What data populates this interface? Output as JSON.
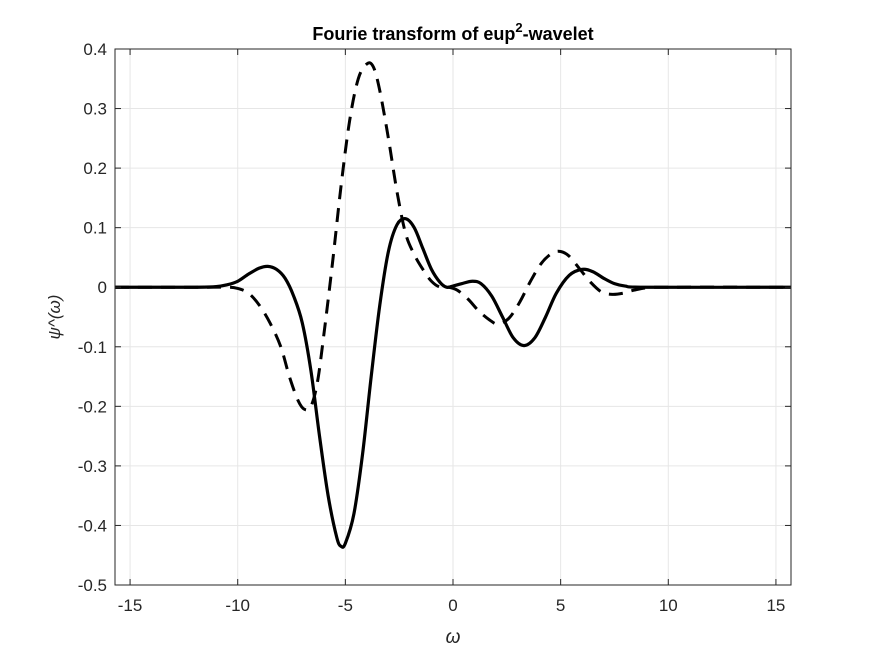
{
  "chart_data": {
    "type": "line",
    "title": "Fourie transform of eup",
    "title_superscript": "2",
    "title_suffix": "-wavelet",
    "xlabel": "ω",
    "ylabel": "ψ^(ω)",
    "xlim": [
      -15.7,
      15.7
    ],
    "ylim": [
      -0.5,
      0.4
    ],
    "xticks": [
      -15,
      -10,
      -5,
      0,
      5,
      10,
      15
    ],
    "xtick_labels": [
      "-15",
      "-10",
      "-5",
      "0",
      "5",
      "10",
      "15"
    ],
    "yticks": [
      -0.5,
      -0.4,
      -0.3,
      -0.2,
      -0.1,
      0,
      0.1,
      0.2,
      0.3,
      0.4
    ],
    "ytick_labels": [
      "-0.5",
      "-0.4",
      "-0.3",
      "-0.2",
      "-0.1",
      "0",
      "0.1",
      "0.2",
      "0.3",
      "0.4"
    ],
    "grid": true,
    "colors": {
      "line": "#000000",
      "grid": "#e6e6e6",
      "axes": "#262626"
    },
    "series": [
      {
        "style": "solid",
        "points": [
          [
            -15.7,
            0
          ],
          [
            -12,
            0
          ],
          [
            -11,
            0.001
          ],
          [
            -10.5,
            0.004
          ],
          [
            -10,
            0.01
          ],
          [
            -9.5,
            0.022
          ],
          [
            -9,
            0.032
          ],
          [
            -8.6,
            0.035
          ],
          [
            -8.2,
            0.03
          ],
          [
            -7.8,
            0.015
          ],
          [
            -7.4,
            -0.015
          ],
          [
            -7,
            -0.06
          ],
          [
            -6.6,
            -0.14
          ],
          [
            -6.2,
            -0.25
          ],
          [
            -5.8,
            -0.35
          ],
          [
            -5.4,
            -0.42
          ],
          [
            -5.2,
            -0.435
          ],
          [
            -5,
            -0.43
          ],
          [
            -4.6,
            -0.38
          ],
          [
            -4.2,
            -0.28
          ],
          [
            -3.8,
            -0.15
          ],
          [
            -3.4,
            -0.03
          ],
          [
            -3,
            0.06
          ],
          [
            -2.6,
            0.105
          ],
          [
            -2.2,
            0.115
          ],
          [
            -1.8,
            0.1
          ],
          [
            -1.4,
            0.065
          ],
          [
            -1,
            0.03
          ],
          [
            -0.6,
            0.008
          ],
          [
            -0.3,
            0
          ],
          [
            0,
            0.002
          ],
          [
            0.4,
            0.006
          ],
          [
            0.9,
            0.01
          ],
          [
            1.3,
            0.006
          ],
          [
            1.8,
            -0.015
          ],
          [
            2.3,
            -0.05
          ],
          [
            2.8,
            -0.085
          ],
          [
            3.3,
            -0.098
          ],
          [
            3.8,
            -0.085
          ],
          [
            4.3,
            -0.05
          ],
          [
            4.8,
            -0.01
          ],
          [
            5.4,
            0.02
          ],
          [
            6,
            0.03
          ],
          [
            6.5,
            0.026
          ],
          [
            7,
            0.015
          ],
          [
            7.5,
            0.006
          ],
          [
            8,
            0.002
          ],
          [
            9,
            0
          ],
          [
            15.7,
            0
          ]
        ]
      },
      {
        "style": "dashed",
        "points": [
          [
            -15.7,
            0
          ],
          [
            -12,
            0
          ],
          [
            -10.5,
            0
          ],
          [
            -10,
            -0.002
          ],
          [
            -9.5,
            -0.01
          ],
          [
            -9,
            -0.03
          ],
          [
            -8.5,
            -0.06
          ],
          [
            -8,
            -0.1
          ],
          [
            -7.6,
            -0.15
          ],
          [
            -7.2,
            -0.19
          ],
          [
            -6.9,
            -0.205
          ],
          [
            -6.6,
            -0.2
          ],
          [
            -6.3,
            -0.16
          ],
          [
            -6,
            -0.08
          ],
          [
            -5.6,
            0.04
          ],
          [
            -5.2,
            0.17
          ],
          [
            -4.8,
            0.28
          ],
          [
            -4.4,
            0.35
          ],
          [
            -4,
            0.375
          ],
          [
            -3.7,
            0.37
          ],
          [
            -3.4,
            0.33
          ],
          [
            -3,
            0.25
          ],
          [
            -2.6,
            0.16
          ],
          [
            -2.2,
            0.09
          ],
          [
            -1.8,
            0.055
          ],
          [
            -1.4,
            0.03
          ],
          [
            -1,
            0.01
          ],
          [
            -0.6,
            0
          ],
          [
            -0.2,
            0
          ],
          [
            0.2,
            -0.005
          ],
          [
            0.7,
            -0.02
          ],
          [
            1.2,
            -0.04
          ],
          [
            1.7,
            -0.055
          ],
          [
            2.1,
            -0.062
          ],
          [
            2.6,
            -0.052
          ],
          [
            3.1,
            -0.025
          ],
          [
            3.6,
            0.01
          ],
          [
            4.1,
            0.04
          ],
          [
            4.6,
            0.057
          ],
          [
            5,
            0.06
          ],
          [
            5.4,
            0.052
          ],
          [
            5.9,
            0.03
          ],
          [
            6.4,
            0.008
          ],
          [
            6.9,
            -0.008
          ],
          [
            7.4,
            -0.012
          ],
          [
            7.9,
            -0.01
          ],
          [
            8.4,
            -0.005
          ],
          [
            9,
            -0.001
          ],
          [
            10,
            0
          ],
          [
            15.7,
            0
          ]
        ]
      }
    ]
  }
}
